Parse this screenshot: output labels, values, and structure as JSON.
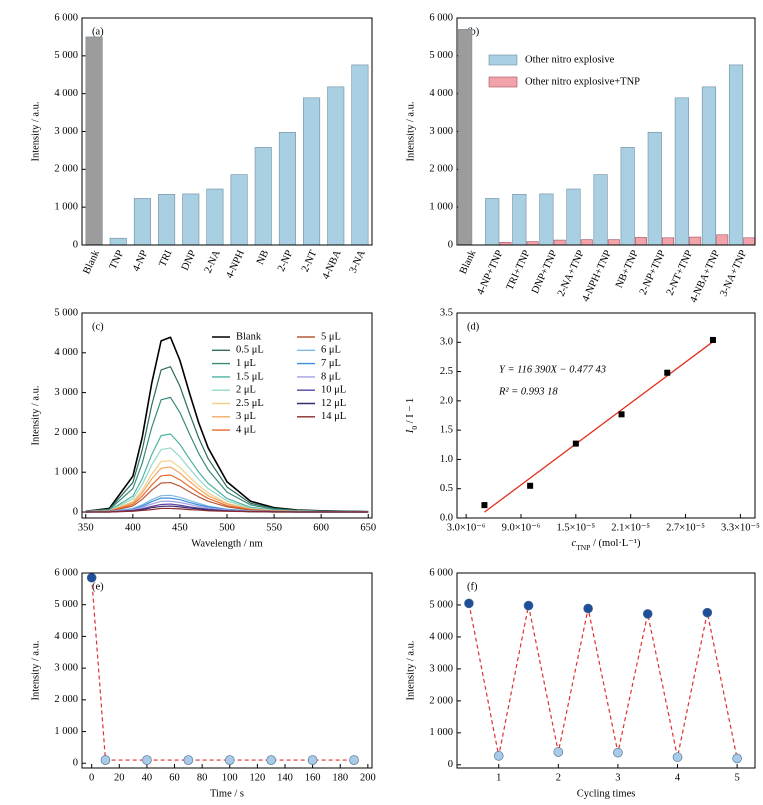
{
  "chart_data": [
    {
      "type": "bar",
      "panel_label": "(a)",
      "y_label": "Intensity / a.u.",
      "categories": [
        "Blank",
        "TNP",
        "4-NP",
        "TRI",
        "DNP",
        "2-NA",
        "4-NPH",
        "NB",
        "2-NP",
        "2-NT",
        "4-NBA",
        "3-NA"
      ],
      "values": [
        5500,
        180,
        1230,
        1340,
        1350,
        1480,
        1860,
        2580,
        2980,
        3890,
        4180,
        4760
      ],
      "color": "#a9cfe2",
      "blank_color": "#9c9c9c",
      "ylim": [
        0,
        6000
      ],
      "yticks": [
        0,
        {
          "value": 1000,
          "label": "1 000"
        },
        {
          "value": 2000,
          "label": "2 000"
        },
        {
          "value": 3000,
          "label": "3 000"
        },
        {
          "value": 4000,
          "label": "4 000"
        },
        {
          "value": 5000,
          "label": "5 000"
        },
        {
          "value": 6000,
          "label": "6 000"
        }
      ]
    },
    {
      "type": "grouped_bar",
      "panel_label": "(b)",
      "y_label": "Intensity / a.u.",
      "categories": [
        "Blank",
        "4-NP+TNP",
        "TRI+TNP",
        "DNP+TNP",
        "2-NA+TNP",
        "4-NPH+TNP",
        "NB+TNP",
        "2-NP+TNP",
        "2-NT+TNP",
        "4-NBA+TNP",
        "3-NA+TNP"
      ],
      "series": [
        {
          "name": "Other nitro explosive",
          "color": "#a9cfe2",
          "values": [
            5700,
            1230,
            1340,
            1350,
            1480,
            1860,
            2580,
            2980,
            3890,
            4180,
            4760
          ]
        },
        {
          "name": "Other nitro explosive+TNP",
          "color": "#f2a3aa",
          "values": [
            null,
            70,
            90,
            130,
            140,
            140,
            200,
            190,
            210,
            270,
            190
          ]
        }
      ],
      "blank_color": "#9c9c9c",
      "legend": "upper left",
      "ylim": [
        0,
        6000
      ],
      "yticks": [
        0,
        {
          "value": 1000,
          "label": "1 000"
        },
        {
          "value": 2000,
          "label": "2 000"
        },
        {
          "value": 3000,
          "label": "3 000"
        },
        {
          "value": 4000,
          "label": "4 000"
        },
        {
          "value": 5000,
          "label": "5 000"
        },
        {
          "value": 6000,
          "label": "6 000"
        }
      ]
    },
    {
      "type": "line",
      "panel_label": "(c)",
      "y_label": "Intensity / a.u.",
      "x_label": "Wavelength / nm",
      "x": [
        350,
        375,
        400,
        410,
        420,
        430,
        440,
        450,
        460,
        470,
        480,
        500,
        525,
        550,
        575,
        600,
        650
      ],
      "series": [
        {
          "name": "Blank",
          "color": "#000000",
          "values": [
            20,
            90,
            900,
            1880,
            3230,
            4300,
            4390,
            3810,
            3000,
            2240,
            1610,
            760,
            270,
            110,
            50,
            30,
            10
          ]
        },
        {
          "name": "0.5 μL",
          "color": "#2e6b5e",
          "values": [
            20,
            70,
            740,
            1560,
            2680,
            3570,
            3650,
            3160,
            2490,
            1860,
            1340,
            630,
            220,
            90,
            40,
            30,
            10
          ]
        },
        {
          "name": "1 μL",
          "color": "#3a8a7a",
          "values": [
            10,
            60,
            590,
            1230,
            2120,
            2820,
            2880,
            2500,
            1970,
            1470,
            1060,
            500,
            180,
            70,
            40,
            20,
            10
          ]
        },
        {
          "name": "1.5 μL",
          "color": "#4cb3a2",
          "values": [
            10,
            40,
            400,
            840,
            1440,
            1920,
            1960,
            1700,
            1340,
            1000,
            720,
            340,
            120,
            50,
            20,
            10,
            10
          ]
        },
        {
          "name": "2 μL",
          "color": "#93d8ca",
          "values": [
            10,
            30,
            330,
            690,
            1180,
            1570,
            1610,
            1390,
            1100,
            820,
            590,
            280,
            100,
            40,
            20,
            10,
            0
          ]
        },
        {
          "name": "2.5 μL",
          "color": "#f2cf8a",
          "values": [
            10,
            30,
            260,
            550,
            950,
            1270,
            1290,
            1120,
            880,
            660,
            480,
            220,
            80,
            30,
            20,
            10,
            0
          ]
        },
        {
          "name": "3 μL",
          "color": "#f0a860",
          "values": [
            10,
            20,
            230,
            480,
            830,
            1100,
            1130,
            980,
            770,
            580,
            410,
            200,
            70,
            30,
            10,
            10,
            0
          ]
        },
        {
          "name": "4 μL",
          "color": "#e8692a",
          "values": [
            0,
            20,
            190,
            400,
            680,
            910,
            930,
            810,
            640,
            480,
            340,
            160,
            60,
            20,
            10,
            10,
            0
          ]
        },
        {
          "name": "5 μL",
          "color": "#b85a3a",
          "values": [
            0,
            20,
            150,
            320,
            550,
            730,
            740,
            650,
            510,
            380,
            270,
            130,
            50,
            20,
            10,
            10,
            0
          ]
        },
        {
          "name": "6 μL",
          "color": "#7fb8e0",
          "values": [
            0,
            10,
            90,
            180,
            310,
            410,
            420,
            370,
            290,
            220,
            150,
            70,
            30,
            10,
            10,
            0,
            0
          ]
        },
        {
          "name": "7 μL",
          "color": "#3a8ee0",
          "values": [
            0,
            10,
            70,
            150,
            260,
            350,
            350,
            310,
            240,
            180,
            130,
            60,
            20,
            10,
            0,
            0,
            0
          ]
        },
        {
          "name": "8 μL",
          "color": "#a0a0e0",
          "values": [
            0,
            10,
            60,
            120,
            200,
            270,
            270,
            240,
            190,
            140,
            100,
            50,
            20,
            10,
            0,
            0,
            0
          ]
        },
        {
          "name": "10 μL",
          "color": "#5a40a0",
          "values": [
            0,
            0,
            40,
            80,
            140,
            190,
            200,
            170,
            130,
            100,
            70,
            30,
            10,
            10,
            0,
            0,
            0
          ]
        },
        {
          "name": "12 μL",
          "color": "#3a2a70",
          "values": [
            0,
            0,
            30,
            60,
            110,
            140,
            150,
            130,
            100,
            80,
            50,
            30,
            10,
            0,
            0,
            0,
            0
          ]
        },
        {
          "name": "14 μL",
          "color": "#8a2a2a",
          "values": [
            0,
            0,
            20,
            40,
            60,
            90,
            90,
            80,
            60,
            50,
            30,
            20,
            10,
            0,
            0,
            0,
            0
          ]
        }
      ],
      "legend": "upper right",
      "xlim": [
        346,
        654
      ],
      "xticks": [
        350,
        400,
        450,
        500,
        550,
        600,
        650
      ],
      "ylim": [
        -150,
        5000
      ],
      "yticks": [
        0,
        {
          "value": 1000,
          "label": "1 000"
        },
        {
          "value": 2000,
          "label": "2 000"
        },
        {
          "value": 3000,
          "label": "3 000"
        },
        {
          "value": 4000,
          "label": "4 000"
        },
        {
          "value": 5000,
          "label": "5 000"
        }
      ]
    },
    {
      "type": "scatter",
      "panel_label": "(d)",
      "y_label": {
        "main": "I",
        "sub": "0",
        "rest": " / I − 1"
      },
      "x_label": {
        "main": "c",
        "sub": "TNP",
        "rest": " / (mol·L⁻¹)"
      },
      "x": [
        5e-06,
        1e-05,
        1.5e-05,
        2e-05,
        2.5e-05,
        3e-05
      ],
      "values": [
        0.22,
        0.55,
        1.27,
        1.77,
        2.48,
        3.04
      ],
      "color": "#000000",
      "fit": {
        "color": "#e03020",
        "x": [
          5e-06,
          3e-05
        ],
        "values": [
          0.1,
          3.01
        ]
      },
      "equation": "Y = 116 390X − 0.477 43",
      "r_squared": "R² = 0.993 18",
      "xlim": [
        2e-06,
        3.46e-05
      ],
      "xticks": [
        {
          "value": 3e-06,
          "label": "3.0×10⁻⁶"
        },
        {
          "value": 9e-06,
          "label": "9.0×10⁻⁶"
        },
        {
          "value": 1.5e-05,
          "label": "1.5×10⁻⁵"
        },
        {
          "value": 2.1e-05,
          "label": "2.1×10⁻⁵"
        },
        {
          "value": 2.7e-05,
          "label": "2.7×10⁻⁵"
        },
        {
          "value": 3.3e-05,
          "label": "3.3×10⁻⁵"
        }
      ],
      "ylim": [
        0,
        3.5
      ],
      "yticks": [
        {
          "value": 0,
          "label": "0.0"
        },
        0.5,
        {
          "value": 1,
          "label": "1.0"
        },
        1.5,
        {
          "value": 2,
          "label": "2.0"
        },
        2.5,
        {
          "value": 3,
          "label": "3.0"
        },
        3.5
      ]
    },
    {
      "type": "marker_line",
      "panel_label": "(e)",
      "y_label": "Intensity / a.u.",
      "x_label": "Time / s",
      "x": [
        0,
        10,
        40,
        70,
        100,
        130,
        160,
        190
      ],
      "values": [
        5850,
        100,
        100,
        100,
        100,
        100,
        100,
        100
      ],
      "point_colors": [
        "#1f4f9a",
        "#a8cbea",
        "#a8cbea",
        "#a8cbea",
        "#a8cbea",
        "#a8cbea",
        "#a8cbea",
        "#a8cbea"
      ],
      "line_color": "#e03030",
      "xlim": [
        -7,
        203
      ],
      "xticks": [
        0,
        20,
        40,
        60,
        80,
        100,
        120,
        140,
        160,
        180,
        200
      ],
      "ylim": [
        -150,
        6000
      ],
      "yticks": [
        0,
        {
          "value": 1000,
          "label": "1 000"
        },
        {
          "value": 2000,
          "label": "2 000"
        },
        {
          "value": 3000,
          "label": "3 000"
        },
        {
          "value": 4000,
          "label": "4 000"
        },
        {
          "value": 5000,
          "label": "5 000"
        },
        {
          "value": 6000,
          "label": "6 000"
        }
      ]
    },
    {
      "type": "marker_line",
      "panel_label": "(f)",
      "y_label": "Intensity / a.u.",
      "x_label": "Cycling times",
      "x": [
        0.5,
        1,
        1.5,
        2,
        2.5,
        3,
        3.5,
        4,
        4.5,
        5
      ],
      "values": [
        5050,
        280,
        4980,
        400,
        4890,
        380,
        4720,
        240,
        4760,
        200
      ],
      "point_colors": [
        "#1f4f9a",
        "#a8cbea",
        "#1f4f9a",
        "#a8cbea",
        "#1f4f9a",
        "#a8cbea",
        "#1f4f9a",
        "#a8cbea",
        "#1f4f9a",
        "#a8cbea"
      ],
      "line_color": "#e03030",
      "xlim": [
        0.3,
        5.3
      ],
      "xticks": [
        1,
        2,
        3,
        4,
        5
      ],
      "ylim": [
        -100,
        6000
      ],
      "yticks": [
        0,
        {
          "value": 1000,
          "label": "1 000"
        },
        {
          "value": 2000,
          "label": "2 000"
        },
        {
          "value": 3000,
          "label": "3 000"
        },
        {
          "value": 4000,
          "label": "4 000"
        },
        {
          "value": 5000,
          "label": "5 000"
        },
        {
          "value": 6000,
          "label": "6 000"
        }
      ]
    }
  ]
}
